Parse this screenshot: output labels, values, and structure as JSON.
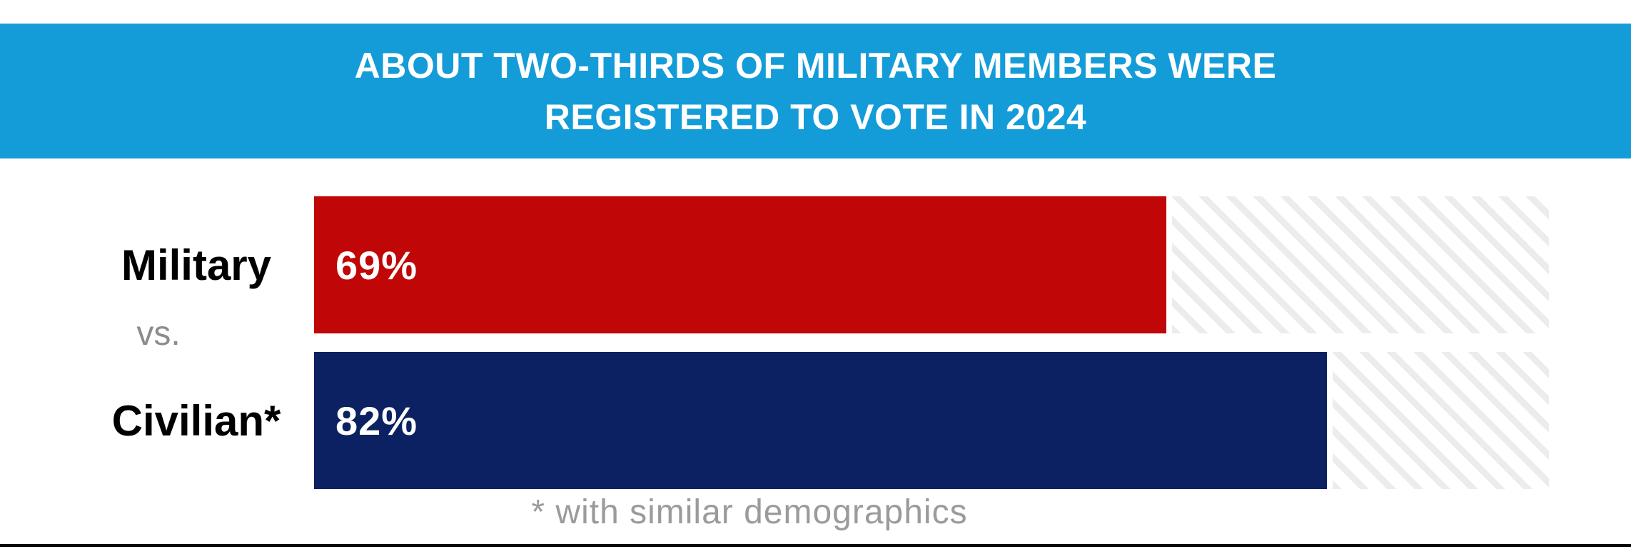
{
  "header": {
    "title_line1": "ABOUT TWO-THIRDS OF MILITARY MEMBERS WERE",
    "title_line2": "REGISTERED TO VOTE IN 2024"
  },
  "chart_data": {
    "type": "bar",
    "orientation": "horizontal",
    "title": "ABOUT TWO-THIRDS OF MILITARY MEMBERS WERE REGISTERED TO VOTE IN 2024",
    "categories": [
      "Military",
      "Civilian*"
    ],
    "values": [
      69,
      82
    ],
    "value_labels": [
      "69%",
      "82%"
    ],
    "bar_colors": [
      "#c00606",
      "#0b2161"
    ],
    "xlim": [
      0,
      100
    ],
    "grid": false,
    "legend": false,
    "separator_label": "vs.",
    "footnote": "* with similar demographics",
    "track_style": "diagonal-hatch-remainder-to-100"
  },
  "rows": [
    {
      "label": "Military",
      "value_label": "69%"
    },
    {
      "label": "Civilian*",
      "value_label": "82%"
    }
  ],
  "vs_label": "vs.",
  "footer": {
    "note": "* with similar demographics"
  },
  "colors": {
    "header_bg": "#149cd8",
    "header_text": "#ffffff",
    "bar_military": "#c00606",
    "bar_civilian": "#0b2161",
    "value_text": "#ffffff",
    "label_text": "#000000",
    "vs_text": "#8c8c8c",
    "footnote_text": "#9b9b9b",
    "hatch_stripe": "#ececee",
    "rule": "#050505"
  }
}
